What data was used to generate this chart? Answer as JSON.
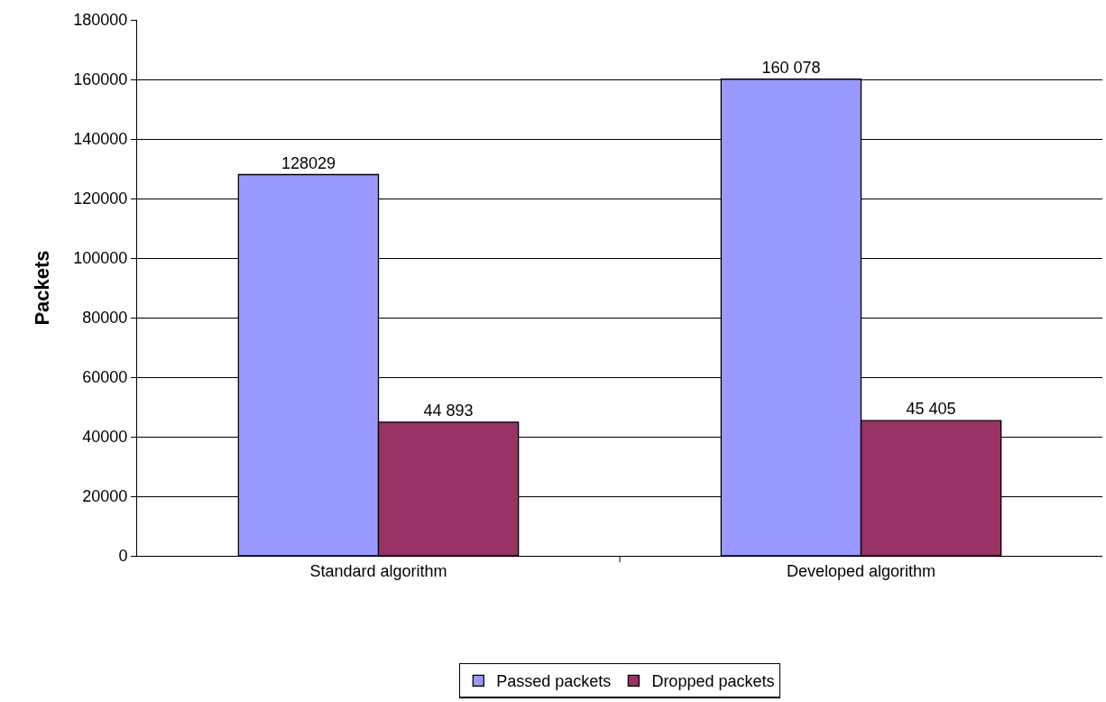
{
  "chart_data": {
    "type": "bar",
    "ylabel": "Packets",
    "categories": [
      "Standard algorithm",
      "Developed algorithm"
    ],
    "series": [
      {
        "name": "Passed packets",
        "color": "#9999ff",
        "values": [
          128029,
          160078
        ],
        "value_labels": [
          "128029",
          "160 078"
        ]
      },
      {
        "name": "Dropped packets",
        "color": "#993366",
        "values": [
          44893,
          45405
        ],
        "value_labels": [
          "44 893",
          "45 405"
        ]
      }
    ],
    "ylim": [
      0,
      180000
    ],
    "yticks": [
      0,
      20000,
      40000,
      60000,
      80000,
      100000,
      120000,
      140000,
      160000,
      180000
    ],
    "grid": "y",
    "legend": "bottom"
  }
}
